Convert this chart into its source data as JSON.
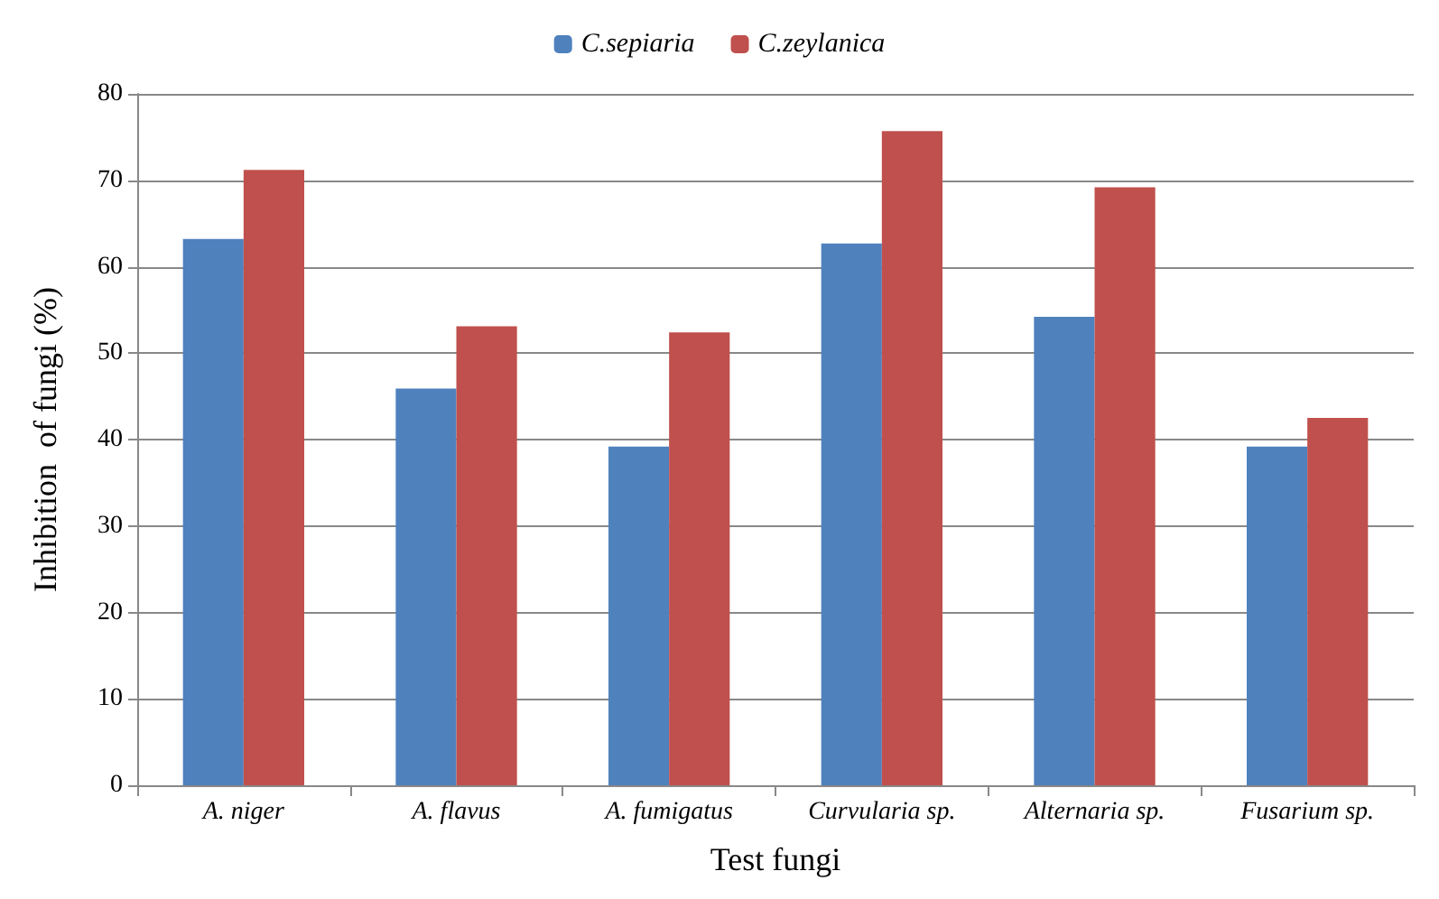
{
  "chart_data": {
    "type": "bar",
    "xlabel": "Test fungi",
    "ylabel": "Inhibition  of fungi (%)",
    "categories": [
      "A. niger",
      "A. flavus",
      "A. fumigatus",
      "Curvularia sp.",
      "Alternaria sp.",
      "Fusarium sp."
    ],
    "series": [
      {
        "name": "C.sepiaria",
        "color": "#4f81bd",
        "values": [
          63.2,
          45.9,
          39.2,
          62.7,
          54.2,
          39.2
        ]
      },
      {
        "name": "C.zeylanica",
        "color": "#c0504d",
        "values": [
          71.2,
          53.1,
          52.4,
          75.7,
          69.2,
          42.5
        ]
      }
    ],
    "ylim": [
      0,
      80
    ],
    "yticks": [
      0,
      10,
      20,
      30,
      40,
      50,
      60,
      70,
      80
    ],
    "grid": "y",
    "legend": "top"
  }
}
